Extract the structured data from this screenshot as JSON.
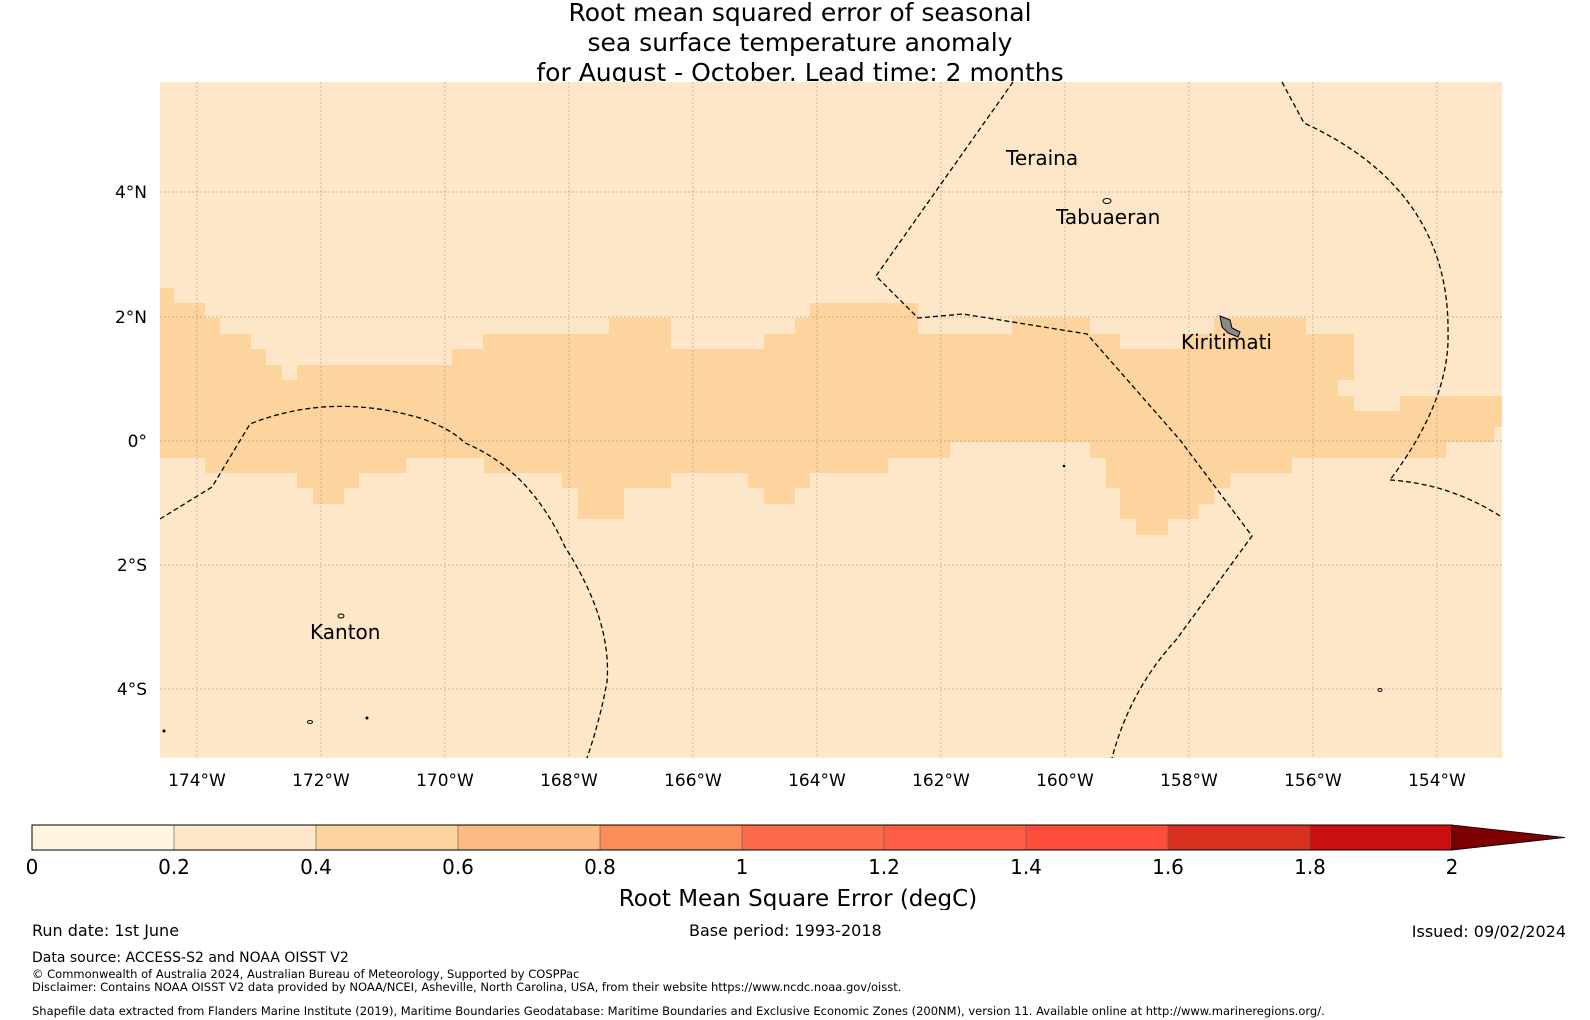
{
  "title": {
    "line1": "Root mean squared error of seasonal",
    "line2": "sea surface temperature anomaly",
    "line3": "for August - October. Lead time: 2 months"
  },
  "map": {
    "lat_ticks": [
      "4°N",
      "2°N",
      "0°",
      "2°S",
      "4°S"
    ],
    "lon_ticks": [
      "174°W",
      "172°W",
      "170°W",
      "168°W",
      "166°W",
      "164°W",
      "162°W",
      "160°W",
      "158°W",
      "156°W",
      "154°W"
    ],
    "places": [
      "Teraina",
      "Tabuaeran",
      "Kiritimati",
      "Kanton"
    ],
    "colors": {
      "low": "#fee6c8",
      "mid": "#fdd49e",
      "land": "#888888"
    }
  },
  "colorbar": {
    "ticks": [
      "0",
      "0.2",
      "0.4",
      "0.6",
      "0.8",
      "1",
      "1.2",
      "1.4",
      "1.6",
      "1.8",
      "2"
    ],
    "colors": [
      "#fff3e1",
      "#fee6c8",
      "#fdd49e",
      "#fdbb84",
      "#fc8d59",
      "#fd6b4a",
      "#fd5e45",
      "#fc4e3a",
      "#d7301f",
      "#c81010",
      "#b00000"
    ],
    "extend_color": "#7f0000",
    "label": "Root Mean Square Error (degC)"
  },
  "footer": {
    "run_date": "Run date: 1st June",
    "base_period": "Base period: 1993-2018",
    "issued": "Issued: 09/02/2024",
    "data_source": "Data source: ACCESS-S2 and NOAA OISST V2",
    "copyright": "© Commonwealth of Australia 2024, Australian Bureau of Meteorology, Supported by COSPPac",
    "disclaimer": "Disclaimer: Contains NOAA OISST V2 data provided by NOAA/NCEI, Asheville, North Carolina, USA, from their website https://www.ncdc.noaa.gov/oisst.",
    "shapefile": "Shapefile data extracted from Flanders Marine Institute (2019), Maritime Boundaries Geodatabase: Maritime Boundaries and Exclusive Economic Zones (200NM), version 11. Available online at http://www.marineregions.org/."
  }
}
